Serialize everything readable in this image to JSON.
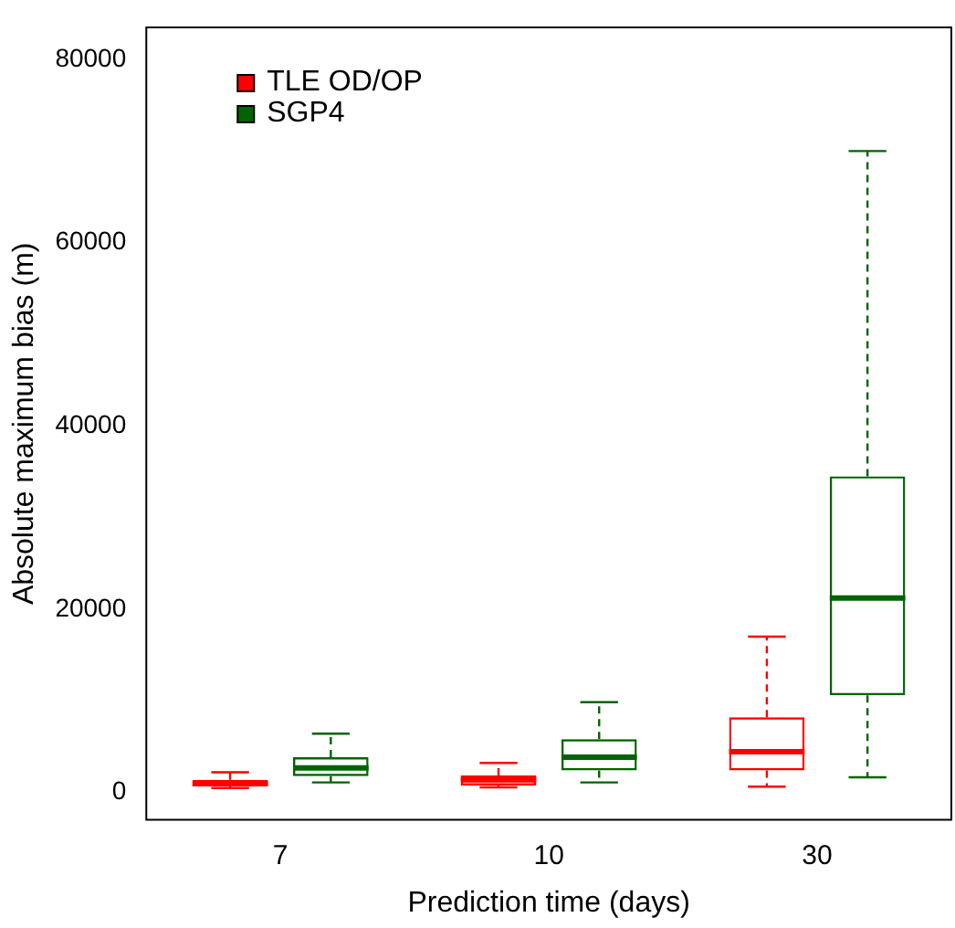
{
  "chart_data": {
    "type": "box",
    "xlabel": "Prediction time (days)",
    "ylabel": "Absolute maximum bias (m)",
    "categories": [
      "7",
      "10",
      "30"
    ],
    "ylim": [
      -3000,
      83500
    ],
    "yticks": [
      0,
      20000,
      40000,
      60000,
      80000
    ],
    "grid": false,
    "legend": "top left",
    "series": [
      {
        "name": "TLE OD/OP",
        "color": "#ff0000",
        "boxes": [
          {
            "low": 470,
            "q1": 680,
            "median": 960,
            "q3": 1370,
            "high": 2200
          },
          {
            "low": 550,
            "q1": 760,
            "median": 1370,
            "q3": 1850,
            "high": 3220
          },
          {
            "low": 620,
            "q1": 2400,
            "median": 4450,
            "q3": 8200,
            "high": 17000
          }
        ]
      },
      {
        "name": "SGP4",
        "color": "#006400",
        "boxes": [
          {
            "low": 1090,
            "q1": 1780,
            "median": 2670,
            "q3": 3840,
            "high": 6400
          },
          {
            "low": 1090,
            "q1": 2400,
            "median": 3840,
            "q3": 5800,
            "high": 9850
          },
          {
            "low": 1640,
            "q1": 10600,
            "median": 21200,
            "q3": 34500,
            "high": 70000
          }
        ]
      }
    ]
  }
}
